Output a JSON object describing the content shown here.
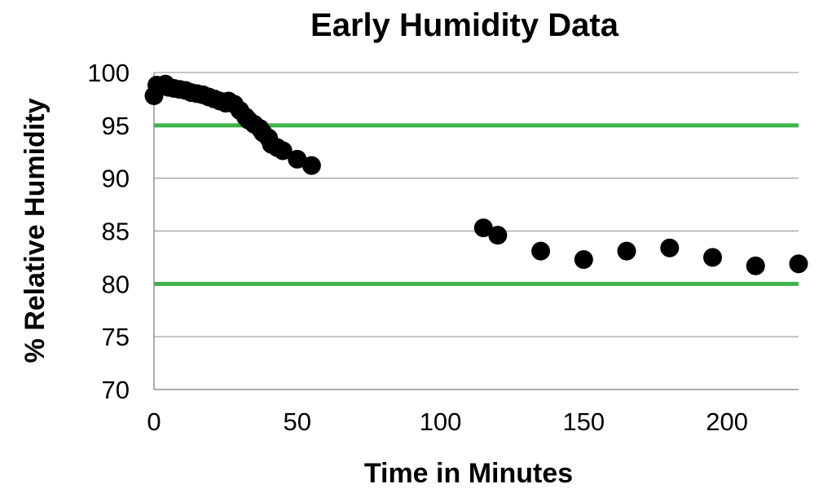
{
  "chart_data": {
    "type": "scatter",
    "title": "Early Humidity Data",
    "xlabel": "Time in Minutes",
    "ylabel": "%  Relative Humidity",
    "xlim": [
      0,
      225
    ],
    "ylim": [
      70,
      100
    ],
    "xticks": [
      0,
      50,
      100,
      150,
      200
    ],
    "yticks": [
      70,
      75,
      80,
      85,
      90,
      95,
      100
    ],
    "grid": "horizontal",
    "point_color": "#000000",
    "reference_lines": [
      {
        "y": 95,
        "color": "#3cb34a"
      },
      {
        "y": 80,
        "color": "#3cb34a"
      }
    ],
    "series": [
      {
        "points": [
          [
            0,
            97.8
          ],
          [
            1,
            98.8
          ],
          [
            4,
            98.9
          ],
          [
            5,
            98.6
          ],
          [
            7,
            98.5
          ],
          [
            9,
            98.4
          ],
          [
            11,
            98.3
          ],
          [
            13,
            98.1
          ],
          [
            15,
            98.0
          ],
          [
            17,
            97.9
          ],
          [
            19,
            97.7
          ],
          [
            21,
            97.5
          ],
          [
            23,
            97.3
          ],
          [
            25,
            97.1
          ],
          [
            26,
            97.3
          ],
          [
            28,
            97.0
          ],
          [
            30,
            96.4
          ],
          [
            32,
            95.8
          ],
          [
            33,
            95.5
          ],
          [
            35,
            95.1
          ],
          [
            37,
            94.7
          ],
          [
            38,
            94.3
          ],
          [
            40,
            93.8
          ],
          [
            41,
            93.2
          ],
          [
            43,
            92.9
          ],
          [
            45,
            92.6
          ],
          [
            50,
            91.8
          ],
          [
            55,
            91.2
          ],
          [
            115,
            85.3
          ],
          [
            120,
            84.6
          ],
          [
            135,
            83.1
          ],
          [
            150,
            82.3
          ],
          [
            165,
            83.1
          ],
          [
            180,
            83.4
          ],
          [
            195,
            82.5
          ],
          [
            210,
            81.7
          ],
          [
            225,
            81.9
          ]
        ]
      }
    ]
  }
}
